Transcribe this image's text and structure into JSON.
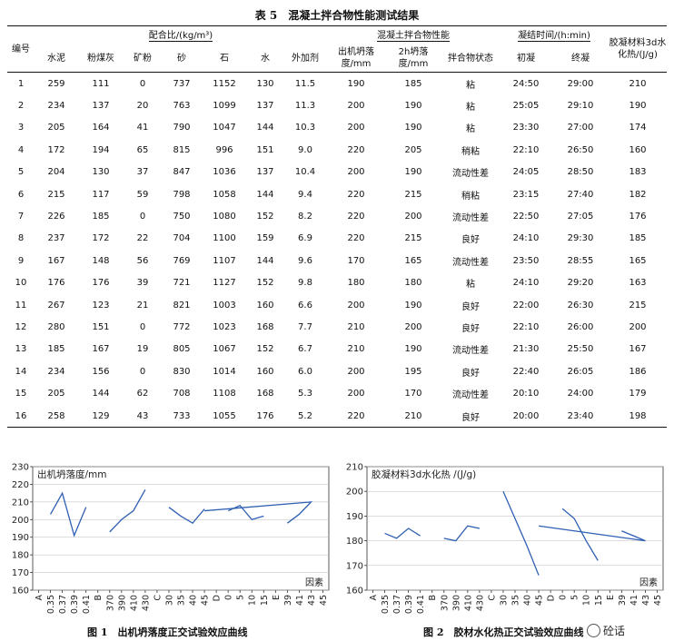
{
  "table": {
    "title": "表 5　混凝土拌合物性能测试结果",
    "header": {
      "no": "编号",
      "mix_group": "配合比/(kg/m³)",
      "perf_group": "混凝土拌合物性能",
      "set_group": "凝结时间/(h:min)",
      "heat": "胶凝材料3d水化热/(J/g)",
      "cols": [
        "水泥",
        "粉煤灰",
        "矿粉",
        "砂",
        "石",
        "水",
        "外加剂",
        "出机坍落度/mm",
        "2h坍落度/mm",
        "拌合物状态",
        "初凝",
        "终凝"
      ]
    },
    "rows": [
      [
        "1",
        "259",
        "111",
        "0",
        "737",
        "1152",
        "130",
        "11.5",
        "190",
        "185",
        "粘",
        "24:50",
        "29:00",
        "210"
      ],
      [
        "2",
        "234",
        "137",
        "20",
        "763",
        "1099",
        "137",
        "11.3",
        "200",
        "190",
        "粘",
        "25:05",
        "29:10",
        "190"
      ],
      [
        "3",
        "205",
        "164",
        "41",
        "790",
        "1047",
        "144",
        "10.3",
        "200",
        "190",
        "粘",
        "23:30",
        "27:00",
        "174"
      ],
      [
        "4",
        "172",
        "194",
        "65",
        "815",
        "996",
        "151",
        "9.0",
        "220",
        "205",
        "稍粘",
        "22:10",
        "26:50",
        "160"
      ],
      [
        "5",
        "204",
        "130",
        "37",
        "847",
        "1036",
        "137",
        "10.4",
        "200",
        "190",
        "流动性差",
        "24:05",
        "28:50",
        "183"
      ],
      [
        "6",
        "215",
        "117",
        "59",
        "798",
        "1058",
        "144",
        "9.4",
        "220",
        "215",
        "稍粘",
        "23:15",
        "27:40",
        "182"
      ],
      [
        "7",
        "226",
        "185",
        "0",
        "750",
        "1080",
        "152",
        "8.2",
        "220",
        "200",
        "流动性差",
        "22:50",
        "27:05",
        "176"
      ],
      [
        "8",
        "237",
        "172",
        "22",
        "704",
        "1100",
        "159",
        "6.9",
        "220",
        "215",
        "良好",
        "24:10",
        "29:30",
        "185"
      ],
      [
        "9",
        "167",
        "148",
        "56",
        "769",
        "1107",
        "144",
        "9.6",
        "170",
        "165",
        "流动性差",
        "23:50",
        "28:55",
        "165"
      ],
      [
        "10",
        "176",
        "176",
        "39",
        "721",
        "1127",
        "152",
        "9.8",
        "180",
        "180",
        "粘",
        "24:10",
        "29:20",
        "163"
      ],
      [
        "11",
        "267",
        "123",
        "21",
        "821",
        "1003",
        "160",
        "6.6",
        "200",
        "190",
        "良好",
        "22:00",
        "26:30",
        "215"
      ],
      [
        "12",
        "280",
        "151",
        "0",
        "772",
        "1023",
        "168",
        "7.7",
        "210",
        "200",
        "良好",
        "22:10",
        "26:00",
        "200"
      ],
      [
        "13",
        "185",
        "167",
        "19",
        "805",
        "1067",
        "152",
        "6.7",
        "210",
        "190",
        "流动性差",
        "21:30",
        "25:50",
        "167"
      ],
      [
        "14",
        "234",
        "156",
        "0",
        "830",
        "1014",
        "160",
        "6.0",
        "200",
        "195",
        "良好",
        "22:40",
        "26:05",
        "186"
      ],
      [
        "15",
        "205",
        "144",
        "62",
        "708",
        "1108",
        "168",
        "5.3",
        "200",
        "170",
        "流动性差",
        "20:10",
        "24:00",
        "179"
      ],
      [
        "16",
        "258",
        "129",
        "43",
        "733",
        "1055",
        "176",
        "5.2",
        "220",
        "210",
        "良好",
        "20:00",
        "23:40",
        "198"
      ]
    ]
  },
  "chart_data": [
    {
      "type": "line",
      "ylabel": "出机坍落度/mm",
      "xlabel": "因素",
      "ylim": [
        160,
        230
      ],
      "yticks": [
        160,
        170,
        180,
        190,
        200,
        210,
        220,
        230
      ],
      "categories": [
        "A",
        "0.35",
        "0.37",
        "0.39",
        "0.41",
        "B",
        "370",
        "390",
        "410",
        "430",
        "C",
        "30",
        "35",
        "40",
        "45",
        "D",
        "0",
        "5",
        "10",
        "15",
        "E",
        "39",
        "41",
        "43",
        "45"
      ],
      "segments": [
        {
          "factor": "A",
          "x": [
            "0.35",
            "0.37",
            "0.39",
            "0.41"
          ],
          "values": [
            203,
            215,
            191,
            207
          ]
        },
        {
          "factor": "B",
          "x": [
            "370",
            "390",
            "410",
            "430"
          ],
          "values": [
            193,
            200,
            205,
            217
          ]
        },
        {
          "factor": "C",
          "x": [
            "30",
            "35",
            "40",
            "45"
          ],
          "values": [
            207,
            202,
            198,
            206
          ]
        },
        {
          "factor": "D",
          "x": [
            "0",
            "5",
            "10",
            "15"
          ],
          "values": [
            205,
            208,
            200,
            202
          ]
        },
        {
          "factor": "E",
          "x": [
            "39",
            "41",
            "43",
            "45"
          ],
          "values": [
            198,
            203,
            210,
            205
          ]
        }
      ]
    },
    {
      "type": "line",
      "ylabel": "胶凝材料3d水化热 /(J/g)",
      "xlabel": "因素",
      "ylim": [
        160,
        210
      ],
      "yticks": [
        160,
        170,
        180,
        190,
        200,
        210
      ],
      "categories": [
        "A",
        "0.35",
        "0.37",
        "0.39",
        "0.41",
        "B",
        "370",
        "390",
        "410",
        "430",
        "C",
        "30",
        "35",
        "40",
        "45",
        "D",
        "0",
        "5",
        "10",
        "15",
        "E",
        "39",
        "41",
        "43",
        "45"
      ],
      "segments": [
        {
          "factor": "A",
          "x": [
            "0.35",
            "0.37",
            "0.39",
            "0.41"
          ],
          "values": [
            183,
            181,
            185,
            182
          ]
        },
        {
          "factor": "B",
          "x": [
            "370",
            "390",
            "410",
            "430"
          ],
          "values": [
            181,
            180,
            186,
            185
          ]
        },
        {
          "factor": "C",
          "x": [
            "30",
            "35",
            "40",
            "45"
          ],
          "values": [
            200,
            189,
            178,
            166
          ]
        },
        {
          "factor": "D",
          "x": [
            "0",
            "5",
            "10",
            "15"
          ],
          "values": [
            193,
            189,
            180,
            172
          ]
        },
        {
          "factor": "E",
          "x": [
            "39",
            "41",
            "43",
            "45"
          ],
          "values": [
            184,
            182,
            180,
            186
          ]
        }
      ]
    }
  ],
  "figures": {
    "fig1_caption": "图 1　出机坍落度正交试验效应曲线",
    "fig2_caption": "图 2　胶材水化热正交试验效应曲线"
  },
  "watermark": "砼话"
}
